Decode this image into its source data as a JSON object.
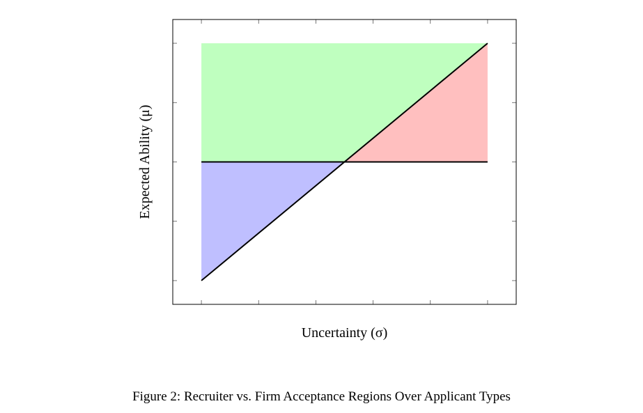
{
  "figure": {
    "caption": "Figure 2: Recruiter vs. Firm Acceptance Regions Over Applicant Types"
  },
  "chart_data": {
    "type": "area",
    "xlabel": "Uncertainty (σ)",
    "ylabel": "Expected Ability (μ)",
    "xlim": [
      -0.5,
      5.5
    ],
    "ylim": [
      -0.4,
      4.4
    ],
    "x_ticks": [
      0,
      1,
      2,
      3,
      4,
      5
    ],
    "y_ticks": [
      0,
      1,
      2,
      3,
      4
    ],
    "tick_labels_shown": false,
    "grid": false,
    "lines": [
      {
        "x": [
          0,
          5
        ],
        "y": [
          2,
          2
        ]
      },
      {
        "x": [
          0,
          5
        ],
        "y": [
          0,
          4
        ]
      }
    ],
    "regions": [
      {
        "color": "#bfffbf",
        "polygon": [
          [
            0,
            2
          ],
          [
            0,
            4
          ],
          [
            5,
            4
          ],
          [
            2.5,
            2
          ]
        ]
      },
      {
        "color": "#ffbfbf",
        "polygon": [
          [
            2.5,
            2
          ],
          [
            5,
            4
          ],
          [
            5,
            2
          ]
        ]
      },
      {
        "color": "#bfbfff",
        "polygon": [
          [
            0,
            0
          ],
          [
            0,
            2
          ],
          [
            2.5,
            2
          ]
        ]
      }
    ]
  }
}
